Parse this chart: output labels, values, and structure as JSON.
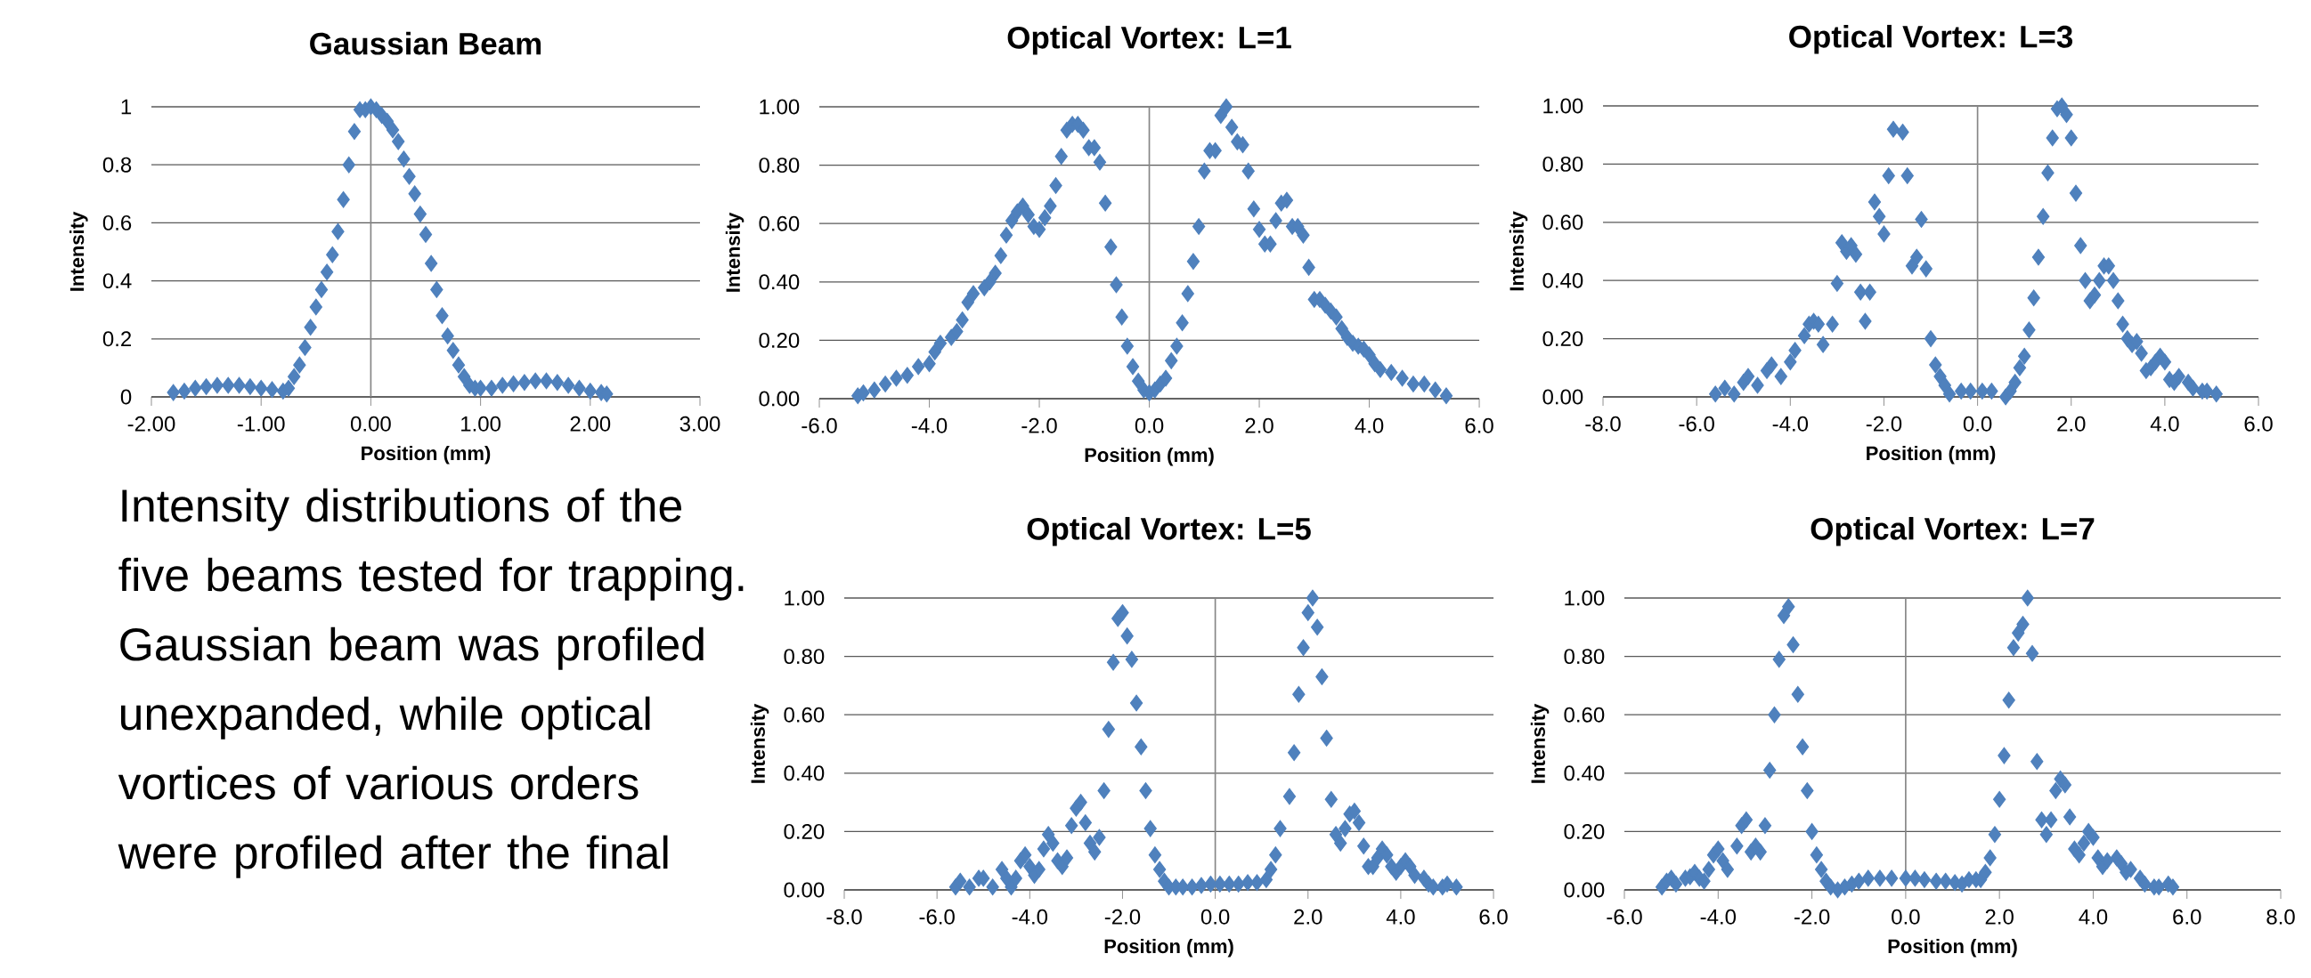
{
  "chart_data": [
    {
      "type": "scatter",
      "ref_lines": [
        {
          "axis": "x",
          "value": 0,
          "color": "#868686"
        }
      ],
      "title": "Gaussian Beam",
      "xlabel": "Position (mm)",
      "ylabel": "Intensity",
      "color": "#4f81bd",
      "marker": "diamond",
      "grid": "y",
      "xlim": [
        -2,
        3
      ],
      "ylim": [
        0,
        1
      ],
      "xticks": [
        {
          "value": -2,
          "label": "-2.00"
        },
        {
          "value": -1,
          "label": "-1.00"
        },
        {
          "value": 0,
          "label": "0.00"
        },
        {
          "value": 1,
          "label": "1.00"
        },
        {
          "value": 2,
          "label": "2.00"
        },
        {
          "value": 3,
          "label": "3.00"
        }
      ],
      "yticks": [
        0,
        0.2,
        0.4,
        0.6,
        0.8,
        1
      ],
      "x": [
        -1.8,
        -1.7,
        -1.6,
        -1.5,
        -1.4,
        -1.3,
        -1.2,
        -1.1,
        -1.0,
        -0.9,
        -0.8,
        -0.75,
        -0.7,
        -0.65,
        -0.6,
        -0.55,
        -0.5,
        -0.45,
        -0.4,
        -0.35,
        -0.3,
        -0.25,
        -0.2,
        -0.15,
        -0.1,
        -0.05,
        0,
        0.05,
        0.1,
        0.15,
        0.2,
        0.25,
        0.3,
        0.35,
        0.4,
        0.45,
        0.5,
        0.55,
        0.6,
        0.65,
        0.7,
        0.75,
        0.8,
        0.85,
        0.9,
        0.95,
        1.0,
        1.1,
        1.2,
        1.3,
        1.4,
        1.5,
        1.6,
        1.7,
        1.8,
        1.9,
        2.0,
        2.1,
        2.15
      ],
      "values": [
        0.015,
        0.02,
        0.03,
        0.035,
        0.04,
        0.04,
        0.04,
        0.035,
        0.03,
        0.025,
        0.02,
        0.03,
        0.07,
        0.11,
        0.17,
        0.24,
        0.31,
        0.37,
        0.43,
        0.49,
        0.57,
        0.68,
        0.8,
        0.915,
        0.99,
        0.99,
        1.0,
        0.99,
        0.97,
        0.95,
        0.92,
        0.88,
        0.82,
        0.76,
        0.7,
        0.63,
        0.56,
        0.46,
        0.37,
        0.28,
        0.21,
        0.16,
        0.11,
        0.07,
        0.04,
        0.03,
        0.03,
        0.03,
        0.04,
        0.045,
        0.05,
        0.055,
        0.055,
        0.05,
        0.04,
        0.03,
        0.02,
        0.015,
        0.01
      ]
    },
    {
      "type": "scatter",
      "ref_lines": [
        {
          "axis": "x",
          "value": 0,
          "color": "#868686"
        }
      ],
      "title": "Optical Vortex: L=1",
      "xlabel": "Position (mm)",
      "ylabel": "Intensity",
      "color": "#4f81bd",
      "marker": "diamond",
      "grid": "y",
      "xlim": [
        -6,
        6
      ],
      "ylim": [
        0,
        1
      ],
      "xticks": [
        {
          "value": -6,
          "label": "-6.0"
        },
        {
          "value": -4,
          "label": "-4.0"
        },
        {
          "value": -2,
          "label": "-2.0"
        },
        {
          "value": 0,
          "label": "0.0"
        },
        {
          "value": 2,
          "label": "2.0"
        },
        {
          "value": 4,
          "label": "4.0"
        },
        {
          "value": 6,
          "label": "6.0"
        }
      ],
      "yticks": [
        {
          "value": 0,
          "label": "0.00"
        },
        {
          "value": 0.2,
          "label": "0.20"
        },
        {
          "value": 0.4,
          "label": "0.40"
        },
        {
          "value": 0.6,
          "label": "0.60"
        },
        {
          "value": 0.8,
          "label": "0.80"
        },
        {
          "value": 1,
          "label": "1.00"
        }
      ],
      "x": [
        -5.3,
        -5.2,
        -5.0,
        -4.8,
        -4.6,
        -4.4,
        -4.2,
        -4.0,
        -3.9,
        -3.8,
        -3.6,
        -3.5,
        -3.4,
        -3.3,
        -3.2,
        -3.0,
        -2.9,
        -2.8,
        -2.7,
        -2.6,
        -2.5,
        -2.4,
        -2.3,
        -2.2,
        -2.1,
        -2.0,
        -1.9,
        -1.8,
        -1.7,
        -1.6,
        -1.5,
        -1.4,
        -1.3,
        -1.2,
        -1.1,
        -1.0,
        -0.9,
        -0.8,
        -0.7,
        -0.6,
        -0.5,
        -0.4,
        -0.3,
        -0.2,
        -0.1,
        0,
        0.1,
        0.2,
        0.3,
        0.4,
        0.5,
        0.6,
        0.7,
        0.8,
        0.9,
        1.0,
        1.1,
        1.2,
        1.3,
        1.4,
        1.5,
        1.6,
        1.7,
        1.8,
        1.9,
        2.0,
        2.1,
        2.2,
        2.3,
        2.4,
        2.5,
        2.6,
        2.7,
        2.8,
        2.9,
        3.0,
        3.1,
        3.2,
        3.3,
        3.4,
        3.5,
        3.6,
        3.7,
        3.8,
        3.9,
        4.0,
        4.1,
        4.2,
        4.4,
        4.6,
        4.8,
        5.0,
        5.2,
        5.4
      ],
      "values": [
        0.01,
        0.02,
        0.03,
        0.05,
        0.07,
        0.08,
        0.11,
        0.12,
        0.16,
        0.19,
        0.21,
        0.23,
        0.27,
        0.33,
        0.36,
        0.38,
        0.4,
        0.43,
        0.49,
        0.56,
        0.61,
        0.64,
        0.66,
        0.63,
        0.59,
        0.58,
        0.62,
        0.66,
        0.73,
        0.83,
        0.92,
        0.94,
        0.94,
        0.92,
        0.86,
        0.86,
        0.81,
        0.67,
        0.52,
        0.39,
        0.28,
        0.18,
        0.11,
        0.06,
        0.03,
        0.02,
        0.03,
        0.05,
        0.07,
        0.13,
        0.18,
        0.26,
        0.36,
        0.47,
        0.59,
        0.78,
        0.85,
        0.85,
        0.97,
        1.0,
        0.93,
        0.88,
        0.87,
        0.78,
        0.65,
        0.58,
        0.53,
        0.53,
        0.61,
        0.67,
        0.68,
        0.59,
        0.59,
        0.56,
        0.45,
        0.34,
        0.34,
        0.32,
        0.3,
        0.28,
        0.24,
        0.21,
        0.19,
        0.18,
        0.17,
        0.15,
        0.12,
        0.1,
        0.09,
        0.07,
        0.05,
        0.05,
        0.03,
        0.01
      ]
    },
    {
      "type": "scatter",
      "ref_lines": [
        {
          "axis": "x",
          "value": 0,
          "color": "#868686"
        }
      ],
      "title": "Optical Vortex: L=3",
      "xlabel": "Position (mm)",
      "ylabel": "Intensity",
      "color": "#4f81bd",
      "marker": "diamond",
      "grid": "y",
      "xlim": [
        -8,
        6
      ],
      "ylim": [
        0,
        1
      ],
      "xticks": [
        {
          "value": -8,
          "label": "-8.0"
        },
        {
          "value": -6,
          "label": "-6.0"
        },
        {
          "value": -4,
          "label": "-4.0"
        },
        {
          "value": -2,
          "label": "-2.0"
        },
        {
          "value": 0,
          "label": "0.0"
        },
        {
          "value": 2,
          "label": "2.0"
        },
        {
          "value": 4,
          "label": "4.0"
        },
        {
          "value": 6,
          "label": "6.0"
        }
      ],
      "yticks": [
        {
          "value": 0,
          "label": "0.00"
        },
        {
          "value": 0.2,
          "label": "0.20"
        },
        {
          "value": 0.4,
          "label": "0.40"
        },
        {
          "value": 0.6,
          "label": "0.60"
        },
        {
          "value": 0.8,
          "label": "0.80"
        },
        {
          "value": 1,
          "label": "1.00"
        }
      ],
      "x": [
        -5.6,
        -5.4,
        -5.2,
        -5.0,
        -4.9,
        -4.7,
        -4.5,
        -4.4,
        -4.2,
        -4.0,
        -3.9,
        -3.7,
        -3.6,
        -3.5,
        -3.4,
        -3.3,
        -3.1,
        -3.0,
        -2.9,
        -2.8,
        -2.7,
        -2.6,
        -2.5,
        -2.4,
        -2.3,
        -2.2,
        -2.1,
        -2.0,
        -1.9,
        -1.8,
        -1.6,
        -1.5,
        -1.4,
        -1.3,
        -1.2,
        -1.1,
        -1.0,
        -0.9,
        -0.8,
        -0.7,
        -0.6,
        -0.35,
        -0.15,
        0.1,
        0.3,
        0.6,
        0.7,
        0.8,
        0.9,
        1.0,
        1.1,
        1.2,
        1.3,
        1.4,
        1.5,
        1.6,
        1.7,
        1.8,
        1.9,
        2.0,
        2.1,
        2.2,
        2.3,
        2.4,
        2.5,
        2.6,
        2.7,
        2.8,
        2.9,
        3.0,
        3.1,
        3.2,
        3.3,
        3.4,
        3.5,
        3.6,
        3.7,
        3.8,
        3.9,
        4.0,
        4.1,
        4.2,
        4.3,
        4.5,
        4.6,
        4.8,
        4.9,
        5.1
      ],
      "values": [
        0.01,
        0.03,
        0.01,
        0.05,
        0.07,
        0.04,
        0.09,
        0.11,
        0.07,
        0.12,
        0.16,
        0.21,
        0.25,
        0.26,
        0.25,
        0.18,
        0.25,
        0.39,
        0.53,
        0.5,
        0.52,
        0.49,
        0.36,
        0.26,
        0.36,
        0.67,
        0.62,
        0.56,
        0.76,
        0.92,
        0.91,
        0.76,
        0.45,
        0.48,
        0.61,
        0.44,
        0.2,
        0.11,
        0.07,
        0.04,
        0.01,
        0.02,
        0.02,
        0.02,
        0.02,
        0.0,
        0.02,
        0.05,
        0.1,
        0.14,
        0.23,
        0.34,
        0.48,
        0.62,
        0.77,
        0.89,
        0.99,
        1.0,
        0.97,
        0.89,
        0.7,
        0.52,
        0.4,
        0.33,
        0.35,
        0.4,
        0.45,
        0.45,
        0.4,
        0.33,
        0.25,
        0.2,
        0.18,
        0.19,
        0.15,
        0.09,
        0.1,
        0.12,
        0.14,
        0.12,
        0.06,
        0.05,
        0.07,
        0.05,
        0.03,
        0.02,
        0.02,
        0.01
      ]
    },
    {
      "type": "other",
      "annotations": [
        "Intensity distributions of the five beams tested for trapping. Gaussian beam was profiled unexpanded, while optical vortices of various orders were profiled after the final"
      ]
    },
    {
      "type": "scatter",
      "ref_lines": [
        {
          "axis": "x",
          "value": 0,
          "color": "#868686"
        }
      ],
      "title": "Optical Vortex: L=5",
      "xlabel": "Position (mm)",
      "ylabel": "Intensity",
      "color": "#4f81bd",
      "marker": "diamond",
      "grid": "y",
      "xlim": [
        -8,
        6
      ],
      "ylim": [
        0,
        1
      ],
      "xticks": [
        {
          "value": -8,
          "label": "-8.0"
        },
        {
          "value": -6,
          "label": "-6.0"
        },
        {
          "value": -4,
          "label": "-4.0"
        },
        {
          "value": -2,
          "label": "-2.0"
        },
        {
          "value": 0,
          "label": "0.0"
        },
        {
          "value": 2,
          "label": "2.0"
        },
        {
          "value": 4,
          "label": "4.0"
        },
        {
          "value": 6,
          "label": "6.0"
        }
      ],
      "yticks": [
        {
          "value": 0,
          "label": "0.00"
        },
        {
          "value": 0.2,
          "label": "0.20"
        },
        {
          "value": 0.4,
          "label": "0.40"
        },
        {
          "value": 0.6,
          "label": "0.60"
        },
        {
          "value": 0.8,
          "label": "0.80"
        },
        {
          "value": 1,
          "label": "1.00"
        }
      ],
      "x": [
        -5.6,
        -5.5,
        -5.3,
        -5.1,
        -5.0,
        -4.8,
        -4.6,
        -4.5,
        -4.4,
        -4.3,
        -4.2,
        -4.1,
        -4.0,
        -3.9,
        -3.8,
        -3.7,
        -3.6,
        -3.5,
        -3.4,
        -3.3,
        -3.2,
        -3.1,
        -3.0,
        -2.9,
        -2.8,
        -2.7,
        -2.6,
        -2.5,
        -2.4,
        -2.3,
        -2.2,
        -2.1,
        -2.0,
        -1.9,
        -1.8,
        -1.7,
        -1.6,
        -1.5,
        -1.4,
        -1.3,
        -1.2,
        -1.1,
        -1.0,
        -0.85,
        -0.7,
        -0.5,
        -0.3,
        -0.1,
        0.1,
        0.3,
        0.5,
        0.7,
        0.9,
        1.1,
        1.2,
        1.3,
        1.4,
        1.6,
        1.7,
        1.8,
        1.9,
        2.0,
        2.1,
        2.2,
        2.3,
        2.4,
        2.5,
        2.6,
        2.7,
        2.8,
        2.9,
        3.0,
        3.1,
        3.2,
        3.3,
        3.4,
        3.5,
        3.6,
        3.7,
        3.8,
        3.9,
        4.0,
        4.1,
        4.2,
        4.3,
        4.5,
        4.6,
        4.7,
        4.9,
        5.0,
        5.2
      ],
      "values": [
        0.01,
        0.03,
        0.01,
        0.04,
        0.04,
        0.01,
        0.07,
        0.04,
        0.01,
        0.04,
        0.1,
        0.12,
        0.08,
        0.05,
        0.07,
        0.14,
        0.19,
        0.16,
        0.1,
        0.08,
        0.11,
        0.22,
        0.28,
        0.3,
        0.23,
        0.16,
        0.13,
        0.18,
        0.34,
        0.55,
        0.78,
        0.93,
        0.95,
        0.87,
        0.79,
        0.64,
        0.49,
        0.34,
        0.21,
        0.12,
        0.07,
        0.03,
        0.01,
        0.01,
        0.01,
        0.01,
        0.015,
        0.02,
        0.02,
        0.02,
        0.02,
        0.025,
        0.025,
        0.035,
        0.07,
        0.12,
        0.21,
        0.32,
        0.47,
        0.67,
        0.83,
        0.95,
        1.0,
        0.9,
        0.73,
        0.52,
        0.31,
        0.19,
        0.16,
        0.21,
        0.26,
        0.27,
        0.23,
        0.15,
        0.08,
        0.08,
        0.11,
        0.14,
        0.12,
        0.08,
        0.06,
        0.08,
        0.1,
        0.08,
        0.05,
        0.04,
        0.02,
        0.01,
        0.01,
        0.02,
        0.01
      ]
    },
    {
      "type": "scatter",
      "ref_lines": [
        {
          "axis": "x",
          "value": 0,
          "color": "#868686"
        }
      ],
      "title": "Optical Vortex: L=7",
      "xlabel": "Position (mm)",
      "ylabel": "Intensity",
      "color": "#4f81bd",
      "marker": "diamond",
      "grid": "y",
      "xlim": [
        -6,
        8
      ],
      "ylim": [
        0,
        1
      ],
      "xticks": [
        {
          "value": -6,
          "label": "-6.0"
        },
        {
          "value": -4,
          "label": "-4.0"
        },
        {
          "value": -2,
          "label": "-2.0"
        },
        {
          "value": 0,
          "label": "0.0"
        },
        {
          "value": 2,
          "label": "2.0"
        },
        {
          "value": 4,
          "label": "4.0"
        },
        {
          "value": 6,
          "label": "6.0"
        },
        {
          "value": 8,
          "label": "8.0"
        }
      ],
      "yticks": [
        {
          "value": 0,
          "label": "0.00"
        },
        {
          "value": 0.2,
          "label": "0.20"
        },
        {
          "value": 0.4,
          "label": "0.40"
        },
        {
          "value": 0.6,
          "label": "0.60"
        },
        {
          "value": 0.8,
          "label": "0.80"
        },
        {
          "value": 1,
          "label": "1.00"
        }
      ],
      "x": [
        -5.2,
        -5.1,
        -5.0,
        -4.9,
        -4.7,
        -4.6,
        -4.5,
        -4.4,
        -4.3,
        -4.2,
        -4.1,
        -4.0,
        -3.9,
        -3.8,
        -3.6,
        -3.5,
        -3.4,
        -3.3,
        -3.2,
        -3.1,
        -3.0,
        -2.9,
        -2.8,
        -2.7,
        -2.6,
        -2.5,
        -2.4,
        -2.3,
        -2.2,
        -2.1,
        -2.0,
        -1.9,
        -1.8,
        -1.7,
        -1.6,
        -1.45,
        -1.3,
        -1.15,
        -1.0,
        -0.8,
        -0.55,
        -0.3,
        0.0,
        0.2,
        0.4,
        0.65,
        0.85,
        1.05,
        1.2,
        1.35,
        1.5,
        1.6,
        1.7,
        1.8,
        1.9,
        2.0,
        2.1,
        2.2,
        2.3,
        2.4,
        2.5,
        2.6,
        2.7,
        2.8,
        2.9,
        3.0,
        3.1,
        3.2,
        3.3,
        3.4,
        3.5,
        3.6,
        3.7,
        3.8,
        3.9,
        4.0,
        4.1,
        4.2,
        4.3,
        4.5,
        4.6,
        4.7,
        4.8,
        5.0,
        5.1,
        5.3,
        5.4,
        5.6,
        5.7
      ],
      "values": [
        0.01,
        0.03,
        0.04,
        0.02,
        0.04,
        0.045,
        0.06,
        0.04,
        0.03,
        0.07,
        0.12,
        0.14,
        0.1,
        0.07,
        0.15,
        0.22,
        0.24,
        0.13,
        0.15,
        0.13,
        0.22,
        0.41,
        0.6,
        0.79,
        0.94,
        0.97,
        0.84,
        0.67,
        0.49,
        0.34,
        0.2,
        0.12,
        0.07,
        0.03,
        0.01,
        0.0,
        0.01,
        0.02,
        0.03,
        0.04,
        0.04,
        0.04,
        0.04,
        0.04,
        0.035,
        0.03,
        0.03,
        0.025,
        0.02,
        0.035,
        0.035,
        0.035,
        0.06,
        0.11,
        0.19,
        0.31,
        0.46,
        0.65,
        0.83,
        0.88,
        0.91,
        1.0,
        0.81,
        0.44,
        0.24,
        0.19,
        0.24,
        0.34,
        0.38,
        0.36,
        0.25,
        0.14,
        0.12,
        0.16,
        0.2,
        0.18,
        0.11,
        0.08,
        0.1,
        0.11,
        0.09,
        0.06,
        0.07,
        0.04,
        0.02,
        0.01,
        0.01,
        0.02,
        0.01
      ]
    }
  ]
}
